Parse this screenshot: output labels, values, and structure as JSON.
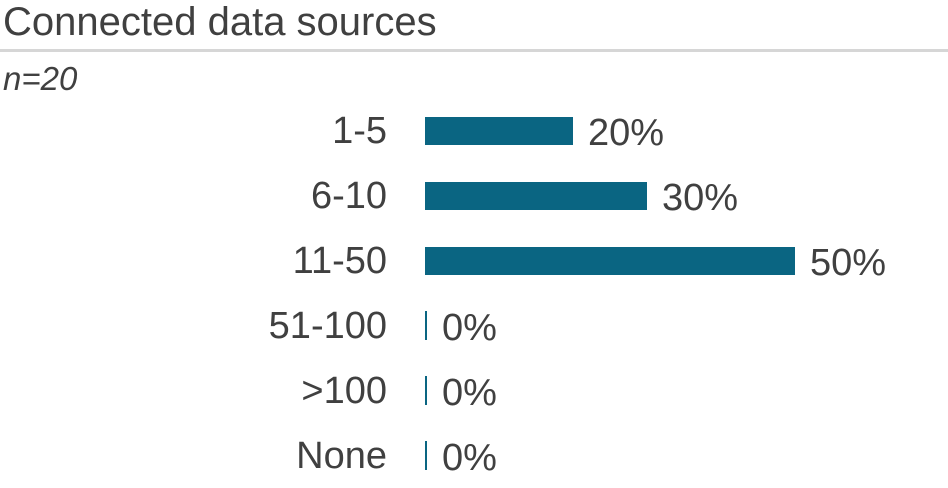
{
  "header": {
    "title": "Connected data sources",
    "sample_size": "n=20"
  },
  "colors": {
    "bar": "#0a6582",
    "text": "#404040",
    "separator": "#d6d6d6"
  },
  "chart_data": {
    "type": "bar",
    "orientation": "horizontal",
    "title": "Connected data sources",
    "subtitle": "n=20",
    "categories": [
      "1-5",
      "6-10",
      "11-50",
      "51-100",
      ">100",
      "None"
    ],
    "values": [
      20,
      30,
      50,
      0,
      0,
      0
    ],
    "value_labels": [
      "20%",
      "30%",
      "50%",
      "0%",
      "0%",
      "0%"
    ],
    "xlabel": "",
    "ylabel": "",
    "xlim": [
      0,
      100
    ],
    "grid": false,
    "legend": false,
    "data_labels": "outside-end",
    "zero_value_style": "thin-tick"
  }
}
